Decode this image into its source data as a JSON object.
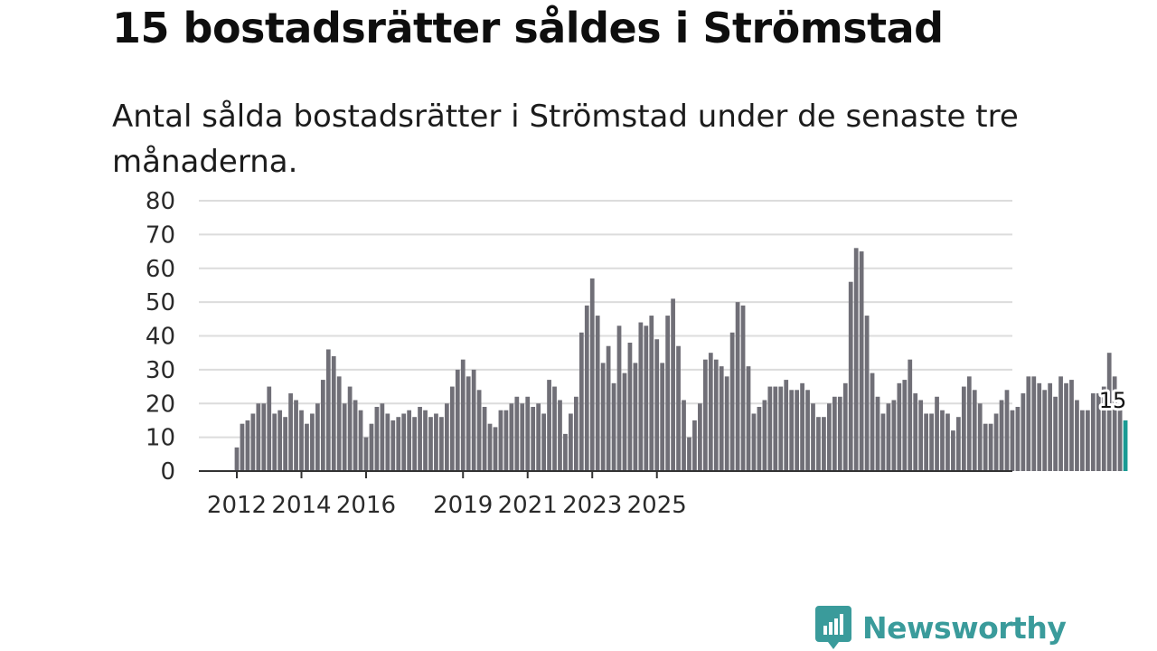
{
  "header": {
    "title": "15 bostadsrätter såldes i Strömstad",
    "subtitle": "Antal sålda bostadsrätter i Strömstad under de senaste tre månaderna."
  },
  "brand": {
    "name": "Newsworthy",
    "color": "#3a9b9b"
  },
  "chart_data": {
    "type": "bar",
    "title": "15 bostadsrätter såldes i Strömstad",
    "xlabel": "",
    "ylabel": "",
    "ylim": [
      0,
      80
    ],
    "yticks": [
      0,
      10,
      20,
      30,
      40,
      50,
      60,
      70,
      80
    ],
    "grid": true,
    "x_start": 2012,
    "x_step_per_bar": 0.1666667,
    "xtick_labels": [
      "2012",
      "2014",
      "2016",
      "2019",
      "2021",
      "2023",
      "2025"
    ],
    "xtick_values": [
      2012,
      2014,
      2016,
      2019,
      2021,
      2023,
      2025
    ],
    "bar_color": "#706f77",
    "highlight_color": "#1a9b94",
    "highlight_label": "15",
    "series": [
      {
        "name": "Sålda bostadsrätter",
        "values": [
          7,
          14,
          15,
          17,
          20,
          20,
          25,
          17,
          18,
          16,
          23,
          21,
          18,
          14,
          17,
          20,
          27,
          36,
          34,
          28,
          20,
          25,
          21,
          18,
          10,
          14,
          19,
          20,
          17,
          15,
          16,
          17,
          18,
          16,
          19,
          18,
          16,
          17,
          16,
          20,
          25,
          30,
          33,
          28,
          30,
          24,
          19,
          14,
          13,
          18,
          18,
          20,
          22,
          20,
          22,
          19,
          20,
          17,
          27,
          25,
          21,
          11,
          17,
          22,
          41,
          49,
          57,
          46,
          32,
          37,
          26,
          43,
          29,
          38,
          32,
          44,
          43,
          46,
          39,
          32,
          46,
          51,
          37,
          21,
          10,
          15,
          20,
          33,
          35,
          33,
          31,
          28,
          41,
          50,
          49,
          31,
          17,
          19,
          21,
          25,
          25,
          25,
          27,
          24,
          24,
          26,
          24,
          20,
          16,
          16,
          20,
          22,
          22,
          26,
          56,
          66,
          65,
          46,
          29,
          22,
          17,
          20,
          21,
          26,
          27,
          33,
          23,
          21,
          17,
          17,
          22,
          18,
          17,
          12,
          16,
          25,
          28,
          24,
          20,
          14,
          14,
          17,
          21,
          24,
          18,
          19,
          23,
          28,
          28,
          26,
          24,
          26,
          22,
          28,
          26,
          27,
          21,
          18,
          18,
          23,
          23,
          25,
          35,
          28,
          20,
          15
        ]
      }
    ]
  }
}
